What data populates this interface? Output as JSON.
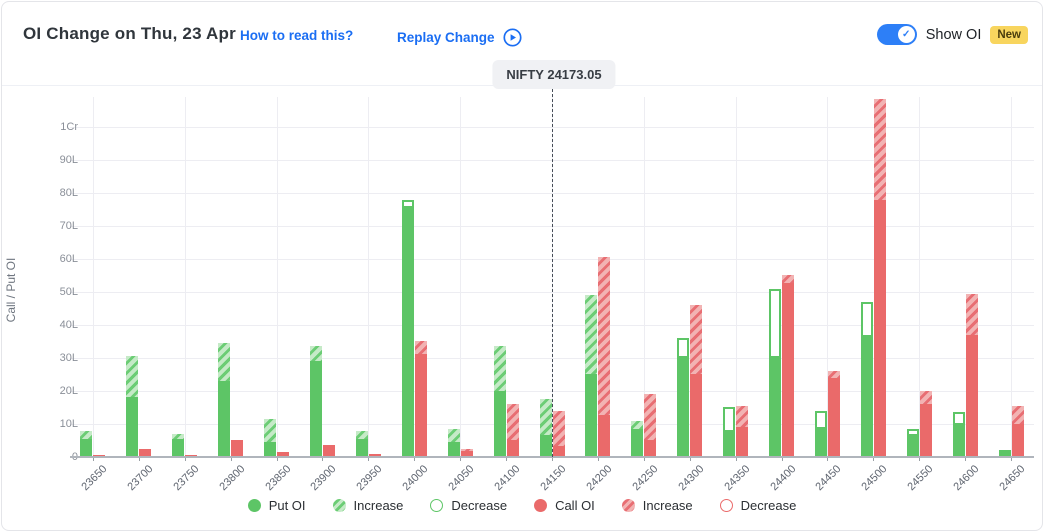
{
  "header": {
    "title": "OI Change on Thu, 23 Apr",
    "how_to_read": "How to read this?",
    "replay": "Replay Change",
    "show_oi": "Show OI",
    "new_badge": "New",
    "toggle_state": "on"
  },
  "spot": {
    "label": "NIFTY 24173.05",
    "value": 24173.05,
    "line_at_strike": 24150
  },
  "colors": {
    "put_solid": "#5dc566",
    "put_hatch_light": "#c5eac7",
    "put_hatch_dark": "#6ccd75",
    "call_solid": "#ea6a6a",
    "call_hatch_light": "#f2b3b3",
    "call_hatch_dark": "#e86e73",
    "link_blue": "#1b6ef3",
    "toggle_blue": "#2d7ff7",
    "badge_yellow": "#f8d55e",
    "grid": "#ededf2",
    "axis_text": "#8a8f98"
  },
  "chart_data": {
    "type": "bar",
    "title": "OI Change on Thu, 23 Apr",
    "xlabel": "",
    "ylabel": "Call / Put OI",
    "y_ticks": [
      "0",
      "10L",
      "20L",
      "30L",
      "40L",
      "50L",
      "60L",
      "70L",
      "80L",
      "90L",
      "1Cr"
    ],
    "y_unit": "lakh (L), 1Cr = 100L",
    "ylim": [
      0,
      109
    ],
    "grid": true,
    "legend_position": "bottom",
    "categories": [
      23650,
      23700,
      23750,
      23800,
      23850,
      23900,
      23950,
      24000,
      24050,
      24100,
      24150,
      24200,
      24250,
      24300,
      24350,
      24400,
      24450,
      24500,
      24550,
      24600,
      24650
    ],
    "series": [
      {
        "name": "Put OI",
        "role": "put",
        "bars": [
          {
            "total": 8,
            "solid": 5.5,
            "change": "increase"
          },
          {
            "total": 30.5,
            "solid": 18,
            "change": "increase"
          },
          {
            "total": 7,
            "solid": 5.5,
            "change": "increase"
          },
          {
            "total": 34.5,
            "solid": 23,
            "change": "increase"
          },
          {
            "total": 11.5,
            "solid": 4.5,
            "change": "increase"
          },
          {
            "total": 33.5,
            "solid": 29,
            "change": "increase"
          },
          {
            "total": 8,
            "solid": 5.5,
            "change": "increase"
          },
          {
            "total": 78,
            "solid": 75.5,
            "change": "decrease"
          },
          {
            "total": 8.5,
            "solid": 4.5,
            "change": "increase"
          },
          {
            "total": 33.5,
            "solid": 20,
            "change": "increase"
          },
          {
            "total": 17.5,
            "solid": 6.5,
            "change": "increase"
          },
          {
            "total": 49,
            "solid": 25,
            "change": "increase"
          },
          {
            "total": 11,
            "solid": 8.5,
            "change": "increase"
          },
          {
            "total": 36,
            "solid": 30,
            "change": "decrease"
          },
          {
            "total": 15,
            "solid": 7.5,
            "change": "decrease"
          },
          {
            "total": 51,
            "solid": 30,
            "change": "decrease"
          },
          {
            "total": 14,
            "solid": 8.5,
            "change": "decrease"
          },
          {
            "total": 47,
            "solid": 36.5,
            "change": "decrease"
          },
          {
            "total": 8.5,
            "solid": 6.5,
            "change": "decrease"
          },
          {
            "total": 13.5,
            "solid": 9.5,
            "change": "decrease"
          },
          {
            "total": 2,
            "solid": 2,
            "change": "none"
          }
        ]
      },
      {
        "name": "Call OI",
        "role": "call",
        "bars": [
          {
            "total": 0.5,
            "solid": 0.5,
            "change": "none"
          },
          {
            "total": 2.5,
            "solid": 2.5,
            "change": "none"
          },
          {
            "total": 0.5,
            "solid": 0.5,
            "change": "none"
          },
          {
            "total": 5,
            "solid": 5,
            "change": "none"
          },
          {
            "total": 1.5,
            "solid": 1.5,
            "change": "none"
          },
          {
            "total": 3.5,
            "solid": 3.5,
            "change": "none"
          },
          {
            "total": 1,
            "solid": 1,
            "change": "none"
          },
          {
            "total": 35,
            "solid": 31,
            "change": "increase"
          },
          {
            "total": 2.5,
            "solid": 2,
            "change": "increase"
          },
          {
            "total": 16,
            "solid": 5,
            "change": "increase"
          },
          {
            "total": 14,
            "solid": 3.5,
            "change": "increase"
          },
          {
            "total": 60.5,
            "solid": 12.5,
            "change": "increase"
          },
          {
            "total": 19,
            "solid": 5,
            "change": "increase"
          },
          {
            "total": 46,
            "solid": 25,
            "change": "increase"
          },
          {
            "total": 15.5,
            "solid": 9,
            "change": "increase"
          },
          {
            "total": 55,
            "solid": 52.5,
            "change": "increase"
          },
          {
            "total": 26,
            "solid": 24,
            "change": "increase"
          },
          {
            "total": 108.5,
            "solid": 78,
            "change": "increase"
          },
          {
            "total": 20,
            "solid": 16,
            "change": "increase"
          },
          {
            "total": 49.5,
            "solid": 37,
            "change": "increase"
          },
          {
            "total": 15.5,
            "solid": 10,
            "change": "increase"
          }
        ]
      }
    ],
    "legend": [
      {
        "label": "Put OI",
        "style": "solid-green"
      },
      {
        "label": "Increase",
        "style": "hatch-green"
      },
      {
        "label": "Decrease",
        "style": "outline-green"
      },
      {
        "label": "Call OI",
        "style": "solid-red"
      },
      {
        "label": "Increase",
        "style": "hatch-red"
      },
      {
        "label": "Decrease",
        "style": "outline-red"
      }
    ]
  }
}
